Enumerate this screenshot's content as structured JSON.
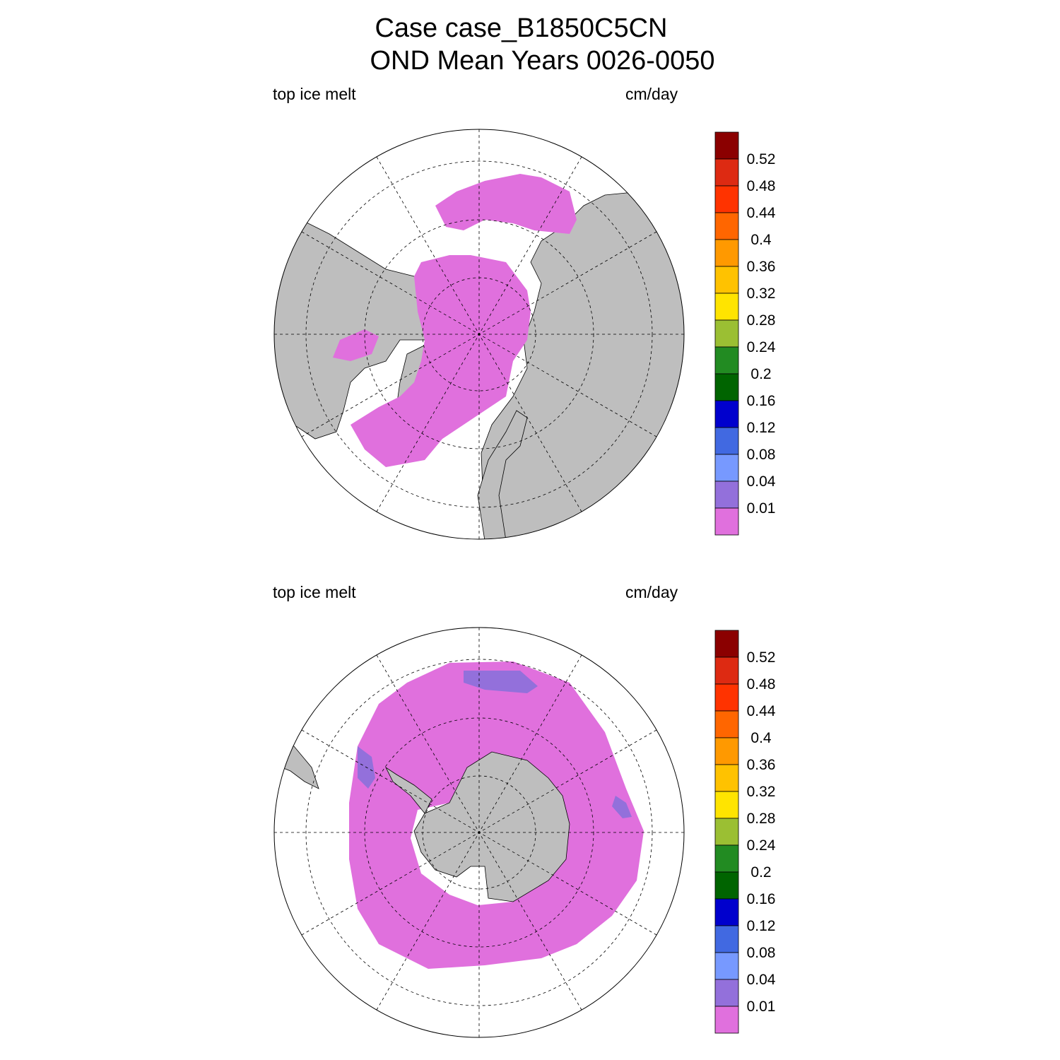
{
  "title_line1": "Case case_B1850C5CN",
  "title_line2": "OND Mean   Years 0026-0050",
  "panels": [
    {
      "left_label": "top ice melt",
      "right_label": "cm/day",
      "hemisphere": "north"
    },
    {
      "left_label": "top ice melt",
      "right_label": "cm/day",
      "hemisphere": "south"
    }
  ],
  "colorbar": {
    "labels": [
      "0.52",
      "0.48",
      "0.44",
      "0.4",
      "0.36",
      "0.32",
      "0.28",
      "0.24",
      "0.2",
      "0.16",
      "0.12",
      "0.08",
      "0.04",
      "0.01"
    ],
    "colors": [
      "#8b0000",
      "#dd2a12",
      "#ff3300",
      "#ff6600",
      "#ff9900",
      "#ffc200",
      "#ffe400",
      "#9bbf33",
      "#228b22",
      "#006400",
      "#0000cd",
      "#4169e1",
      "#7799ff",
      "#9370db",
      "#e070dd"
    ]
  },
  "land_color": "#bebebe",
  "ice_color": "#e070dd",
  "low_melt_color": "#9370db"
}
